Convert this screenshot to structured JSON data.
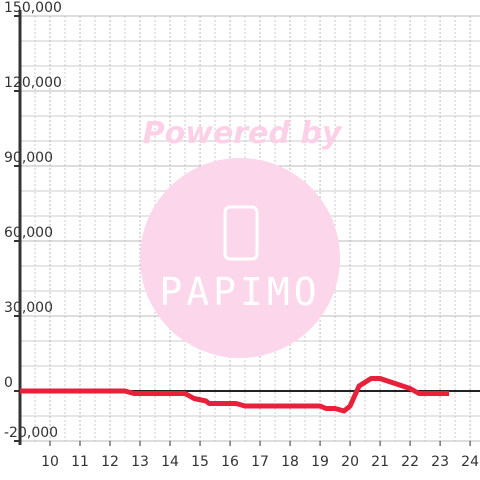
{
  "chart_data": {
    "type": "line",
    "watermark": [
      "Powered by",
      "PAPIMO"
    ],
    "x": [
      9,
      12.5,
      12.8,
      14.5,
      14.8,
      15.2,
      15.3,
      16.2,
      16.5,
      19,
      19.2,
      19.5,
      19.8,
      20,
      20.3,
      20.7,
      21,
      21.5,
      22,
      22.3,
      23.3
    ],
    "series": [
      {
        "color": "#e8203a",
        "values": [
          0,
          0,
          -1000,
          -1000,
          -3000,
          -4000,
          -5000,
          -5000,
          -6000,
          -6000,
          -7000,
          -7000,
          -8000,
          -6000,
          2000,
          5000,
          5000,
          3000,
          1000,
          -1000,
          -1000
        ]
      }
    ],
    "xlim": [
      9,
      24.33
    ],
    "xticks": [
      10,
      11,
      12,
      13,
      14,
      15,
      16,
      17,
      18,
      19,
      20,
      21,
      22,
      23,
      24
    ],
    "xminorticks": [
      9.5,
      10.5,
      11.5,
      12.5,
      13.5,
      14.5,
      15.5,
      16.5,
      17.5,
      18.5,
      19.5,
      20.5,
      21.5,
      22.5,
      23.5
    ],
    "ylim": [
      -20000,
      150000
    ],
    "yticks": [
      {
        "value": -20000,
        "label": "-20,000"
      },
      0,
      {
        "value": 30000,
        "label": "30,000"
      },
      {
        "value": 60000,
        "label": "60,000"
      },
      {
        "value": 90000,
        "label": "90,000"
      },
      {
        "value": 120000,
        "label": "120,000"
      },
      {
        "value": 150000,
        "label": "150,000"
      }
    ],
    "yminorticks": [
      -10000,
      10000,
      20000,
      40000,
      50000,
      70000,
      80000,
      100000,
      110000,
      130000,
      140000
    ],
    "grid": true
  }
}
